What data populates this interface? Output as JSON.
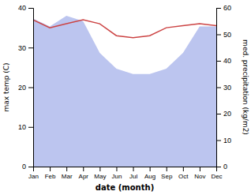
{
  "chart_data": {
    "type": "line",
    "xlabel": "date (month)",
    "ylabel": "max temp (C)",
    "y2label": "med. precipitation (kg/m2)",
    "categories": [
      "Jan",
      "Feb",
      "Mar",
      "Apr",
      "May",
      "Jun",
      "Jul",
      "Aug",
      "Sep",
      "Oct",
      "Nov",
      "Dec"
    ],
    "series": [
      {
        "type": "area",
        "axis": "y2",
        "color": "#bcc5ef",
        "values": [
          56,
          53,
          57,
          55,
          43,
          37,
          35,
          35,
          37,
          43,
          53,
          53
        ]
      },
      {
        "type": "line",
        "color": "#cc4444",
        "values": [
          37.0,
          35.0,
          36.0,
          37.0,
          36.0,
          33.0,
          32.5,
          33.0,
          35.0,
          35.5,
          36.0,
          35.5
        ]
      }
    ],
    "ylim": [
      0,
      40
    ],
    "yticks": [
      0,
      10,
      20,
      30,
      40
    ],
    "y2lim": [
      0,
      60
    ],
    "y2ticks": [
      0,
      10,
      20,
      30,
      40,
      50,
      60
    ]
  }
}
